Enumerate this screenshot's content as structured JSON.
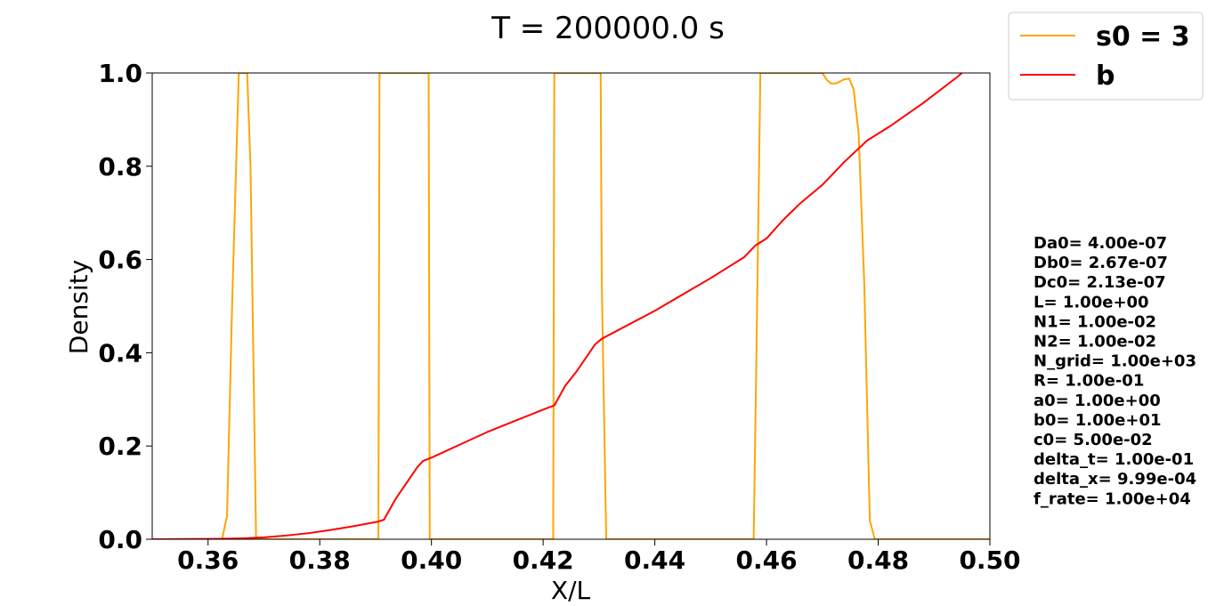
{
  "chart_data": {
    "type": "line",
    "title": "T = 200000.0 s",
    "xlabel": "X/L",
    "ylabel": "Density",
    "xlim": [
      0.35,
      0.5
    ],
    "ylim": [
      0.0,
      1.0
    ],
    "x_ticks": [
      "0.36",
      "0.38",
      "0.40",
      "0.42",
      "0.44",
      "0.46",
      "0.48",
      "0.50"
    ],
    "y_ticks": [
      "0.0",
      "0.2",
      "0.4",
      "0.6",
      "0.8",
      "1.0"
    ],
    "x_tick_values": [
      0.36,
      0.38,
      0.4,
      0.42,
      0.44,
      0.46,
      0.48,
      0.5
    ],
    "y_tick_values": [
      0.0,
      0.2,
      0.4,
      0.6,
      0.8,
      1.0
    ],
    "grid": false,
    "legend_position": "top-right, outside plot",
    "series": [
      {
        "name": "s0 = 3",
        "color": "#FFA500",
        "points": [
          [
            0.35,
            0.0
          ],
          [
            0.3625,
            0.0
          ],
          [
            0.3634,
            0.05
          ],
          [
            0.3643,
            0.5
          ],
          [
            0.3655,
            1.0
          ],
          [
            0.367,
            1.0
          ],
          [
            0.3676,
            0.8
          ],
          [
            0.3686,
            0.0
          ],
          [
            0.3905,
            0.0
          ],
          [
            0.3907,
            1.0
          ],
          [
            0.3995,
            1.0
          ],
          [
            0.3997,
            0.0
          ],
          [
            0.4218,
            0.0
          ],
          [
            0.422,
            1.0
          ],
          [
            0.4303,
            1.0
          ],
          [
            0.4305,
            0.55
          ],
          [
            0.4313,
            0.0
          ],
          [
            0.4577,
            0.0
          ],
          [
            0.4582,
            0.4
          ],
          [
            0.4589,
            1.0
          ],
          [
            0.47,
            1.0
          ],
          [
            0.4708,
            0.985
          ],
          [
            0.4716,
            0.977
          ],
          [
            0.4726,
            0.978
          ],
          [
            0.4738,
            0.986
          ],
          [
            0.4748,
            0.988
          ],
          [
            0.4756,
            0.965
          ],
          [
            0.4765,
            0.87
          ],
          [
            0.4775,
            0.55
          ],
          [
            0.4785,
            0.04
          ],
          [
            0.4794,
            0.0
          ],
          [
            0.5,
            0.0
          ]
        ]
      },
      {
        "name": "b",
        "color": "#FF0000",
        "points": [
          [
            0.35,
            0.0
          ],
          [
            0.356,
            0.0005
          ],
          [
            0.362,
            0.001
          ],
          [
            0.366,
            0.002
          ],
          [
            0.37,
            0.004
          ],
          [
            0.374,
            0.008
          ],
          [
            0.378,
            0.013
          ],
          [
            0.382,
            0.02
          ],
          [
            0.386,
            0.028
          ],
          [
            0.3905,
            0.038
          ],
          [
            0.3915,
            0.042
          ],
          [
            0.3935,
            0.085
          ],
          [
            0.3955,
            0.12
          ],
          [
            0.3975,
            0.155
          ],
          [
            0.3985,
            0.168
          ],
          [
            0.4,
            0.175
          ],
          [
            0.41,
            0.23
          ],
          [
            0.42,
            0.278
          ],
          [
            0.422,
            0.287
          ],
          [
            0.424,
            0.33
          ],
          [
            0.426,
            0.36
          ],
          [
            0.428,
            0.395
          ],
          [
            0.4293,
            0.418
          ],
          [
            0.4305,
            0.43
          ],
          [
            0.44,
            0.49
          ],
          [
            0.45,
            0.56
          ],
          [
            0.456,
            0.605
          ],
          [
            0.458,
            0.63
          ],
          [
            0.46,
            0.645
          ],
          [
            0.463,
            0.685
          ],
          [
            0.466,
            0.72
          ],
          [
            0.47,
            0.76
          ],
          [
            0.474,
            0.81
          ],
          [
            0.478,
            0.855
          ],
          [
            0.482,
            0.885
          ],
          [
            0.488,
            0.935
          ],
          [
            0.494,
            0.99
          ],
          [
            0.495,
            1.0
          ]
        ]
      }
    ],
    "annotations": [
      "Da0= 4.00e-07",
      "Db0= 2.67e-07",
      "Dc0= 2.13e-07",
      "L= 1.00e+00",
      "N1= 1.00e-02",
      "N2= 1.00e-02",
      "N_grid= 1.00e+03",
      "R= 1.00e-01",
      "a0= 1.00e+00",
      "b0= 1.00e+01",
      "c0= 5.00e-02",
      "delta_t= 1.00e-01",
      "delta_x= 9.99e-04",
      "f_rate= 1.00e+04"
    ]
  }
}
